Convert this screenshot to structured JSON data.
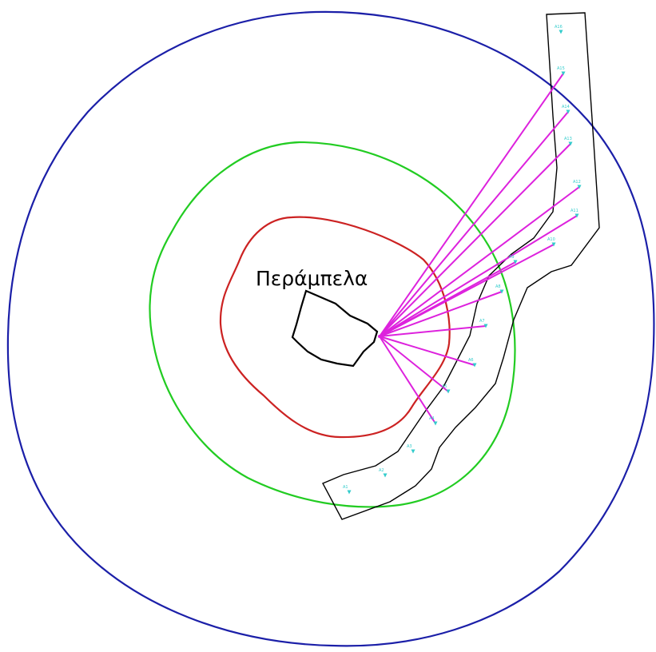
{
  "settlement": {
    "name": "Περάμπελα"
  },
  "colors": {
    "outer_zone": "#1b1fa8",
    "middle_zone": "#22cc22",
    "inner_zone": "#cc2222",
    "boundary": "#000000",
    "sightlines": "#dd22dd",
    "turbines": "#33cccc"
  },
  "turbines": [
    {
      "id": "A1",
      "label": "A1",
      "sightline": false
    },
    {
      "id": "A2",
      "label": "A2",
      "sightline": false
    },
    {
      "id": "A3",
      "label": "A3",
      "sightline": false
    },
    {
      "id": "A4",
      "label": "A4",
      "sightline": true
    },
    {
      "id": "A5",
      "label": "A5",
      "sightline": true
    },
    {
      "id": "A6",
      "label": "A6",
      "sightline": true
    },
    {
      "id": "A7",
      "label": "A7",
      "sightline": true
    },
    {
      "id": "A8",
      "label": "A8",
      "sightline": true
    },
    {
      "id": "A9",
      "label": "A9",
      "sightline": true
    },
    {
      "id": "A10",
      "label": "A10",
      "sightline": true
    },
    {
      "id": "A11",
      "label": "A11",
      "sightline": true
    },
    {
      "id": "A12",
      "label": "A12",
      "sightline": true
    },
    {
      "id": "A13",
      "label": "A13",
      "sightline": true
    },
    {
      "id": "A14",
      "label": "A14",
      "sightline": true
    },
    {
      "id": "A15",
      "label": "A15",
      "sightline": true
    },
    {
      "id": "A16",
      "label": "A16",
      "sightline": false
    }
  ]
}
